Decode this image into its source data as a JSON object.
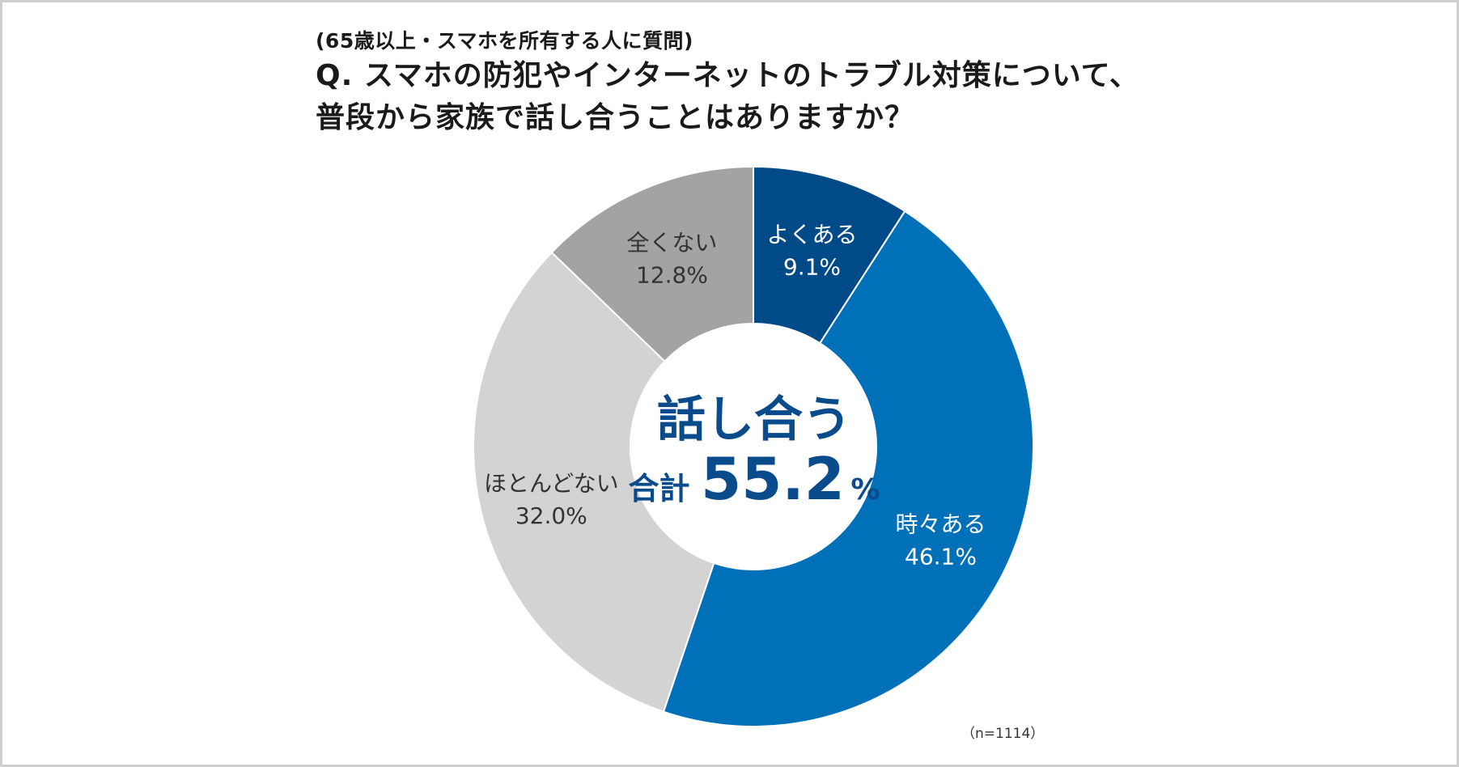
{
  "header": {
    "subtitle": "(65歳以上・スマホを所有する人に質問)",
    "question_line1": "Q. スマホの防犯やインターネットのトラブル対策について、",
    "question_line2": "普段から家族で話し合うことはありますか？"
  },
  "center": {
    "headline": "話し合う",
    "total_label": "合計",
    "total_value": "55.2",
    "total_unit": "%"
  },
  "note": "（n=1114）",
  "colors": {
    "よくある": "#004a87",
    "時々ある": "#0071b9",
    "ほとんどない": "#d3d3d3",
    "全くない": "#a3a3a3",
    "center_text": "#0a4b8c",
    "inside_label_light": "#ffffff",
    "inside_label_dark": "#333333"
  },
  "chart_data": {
    "type": "pie",
    "donut": true,
    "start": "12 o'clock, clockwise",
    "categories": [
      "よくある",
      "時々ある",
      "ほとんどない",
      "全くない"
    ],
    "values": [
      9.1,
      46.1,
      32.0,
      12.8
    ],
    "value_labels": [
      "9.1%",
      "46.1%",
      "32.0%",
      "12.8%"
    ],
    "unit": "%"
  }
}
